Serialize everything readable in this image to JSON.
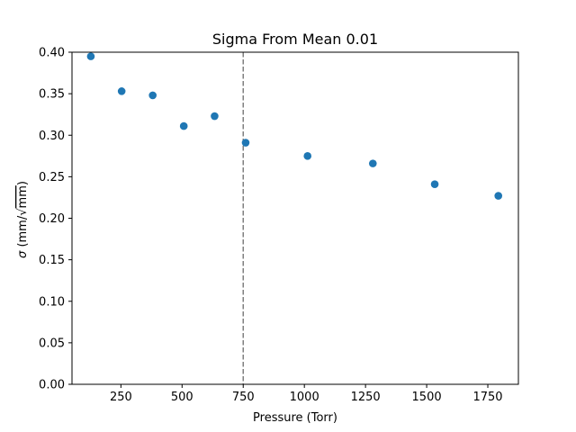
{
  "chart_data": {
    "type": "scatter",
    "title": "Sigma From Mean 0.01",
    "xlabel": "Pressure (Torr)",
    "ylabel_parts": {
      "sym": "σ",
      "open": " (mm/",
      "root": "√",
      "radicand": "mm",
      "close": ")"
    },
    "xlim": [
      50,
      1875
    ],
    "ylim": [
      0.0,
      0.4
    ],
    "x_ticks": [
      250,
      500,
      750,
      1000,
      1250,
      1500,
      1750
    ],
    "x_tick_labels": [
      "250",
      "500",
      "750",
      "1000",
      "1250",
      "1500",
      "1750"
    ],
    "y_ticks": [
      0.0,
      0.05,
      0.1,
      0.15,
      0.2,
      0.25,
      0.3,
      0.35,
      0.4
    ],
    "y_tick_labels": [
      "0.00",
      "0.05",
      "0.10",
      "0.15",
      "0.20",
      "0.25",
      "0.30",
      "0.35",
      "0.40"
    ],
    "grid": false,
    "reference_line": {
      "x": 750,
      "style": "dashed",
      "color": "#808080"
    },
    "series": [
      {
        "color": "#1f77b4",
        "points": [
          {
            "x": 127,
            "y": 0.395
          },
          {
            "x": 253,
            "y": 0.353
          },
          {
            "x": 380,
            "y": 0.348
          },
          {
            "x": 507,
            "y": 0.311
          },
          {
            "x": 633,
            "y": 0.323
          },
          {
            "x": 760,
            "y": 0.291
          },
          {
            "x": 1013,
            "y": 0.275
          },
          {
            "x": 1280,
            "y": 0.266
          },
          {
            "x": 1533,
            "y": 0.241
          },
          {
            "x": 1793,
            "y": 0.227
          }
        ]
      }
    ]
  }
}
